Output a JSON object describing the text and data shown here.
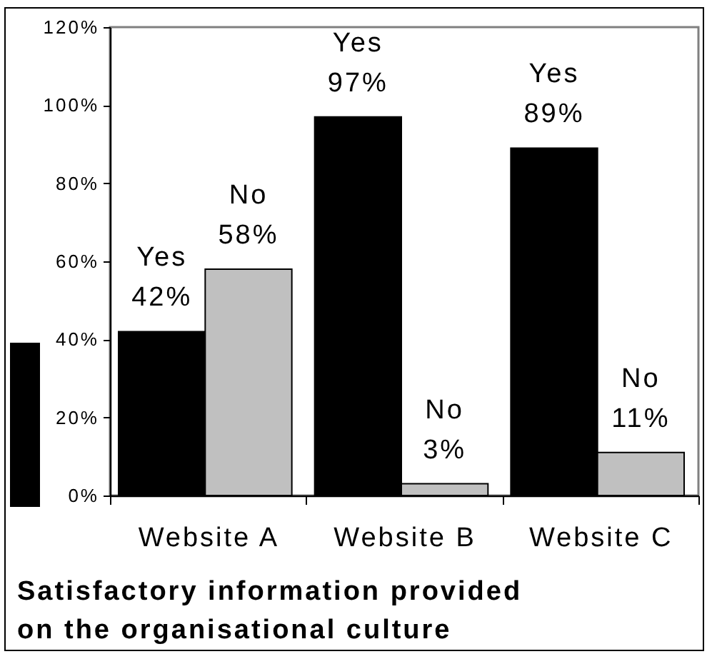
{
  "chart_data": {
    "type": "bar",
    "title": "Satisfactory information provided on the organisational culture",
    "categories": [
      "Website A",
      "Website B",
      "Website C"
    ],
    "series": [
      {
        "name": "Yes",
        "color": "#000000",
        "values": [
          42,
          97,
          89
        ],
        "value_labels": [
          "42%",
          "97%",
          "89%"
        ]
      },
      {
        "name": "No",
        "color": "#c0c0c0",
        "values": [
          58,
          3,
          11
        ],
        "value_labels": [
          "58%",
          "3%",
          "11%"
        ]
      }
    ],
    "ylim": [
      0,
      120
    ],
    "yticks": [
      {
        "value": 0,
        "label": "0%"
      },
      {
        "value": 20,
        "label": "20%"
      },
      {
        "value": 40,
        "label": "40%"
      },
      {
        "value": 60,
        "label": "60%"
      },
      {
        "value": 80,
        "label": "80%"
      },
      {
        "value": 100,
        "label": "100%"
      },
      {
        "value": 120,
        "label": "120%"
      }
    ],
    "grid": false
  }
}
